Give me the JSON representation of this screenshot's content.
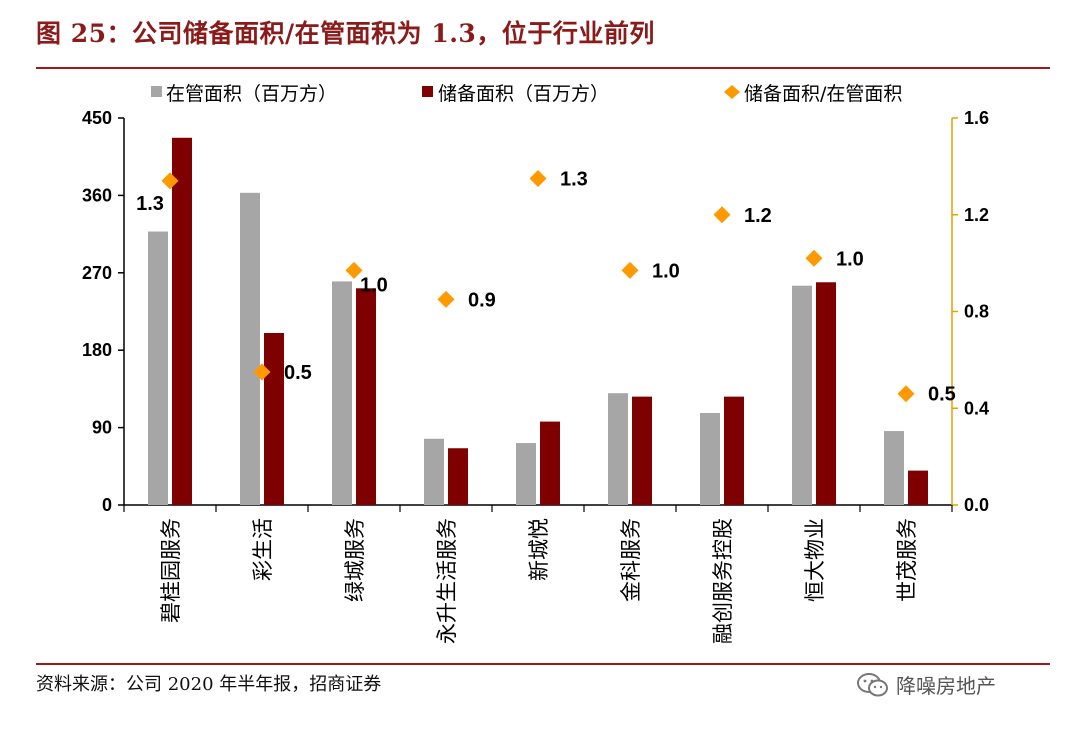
{
  "header": {
    "title": "图 25：公司储备面积/在管面积为 1.3，位于行业前列"
  },
  "footer": {
    "source": "资料来源：公司 2020 年半年报，招商证券",
    "watermark": "降噪房地产"
  },
  "colors": {
    "managed": "#a6a6a6",
    "reserve": "#7f0000",
    "ratio": "#ff9900",
    "brand": "#8b1a1a",
    "right_axis": "#e8a000"
  },
  "chart_data": {
    "type": "bar",
    "categories": [
      "碧桂园服务",
      "彩生活",
      "绿城服务",
      "永升生活服务",
      "新城悦",
      "金科服务",
      "融创服务控股",
      "恒大物业",
      "世茂服务"
    ],
    "series": [
      {
        "name": "在管面积（百万方）",
        "type": "bar",
        "axis": "left",
        "values": [
          318,
          363,
          260,
          77,
          72,
          130,
          107,
          255,
          86
        ]
      },
      {
        "name": "储备面积（百万方）",
        "type": "bar",
        "axis": "left",
        "values": [
          427,
          200,
          252,
          66,
          97,
          126,
          126,
          259,
          40
        ]
      },
      {
        "name": "储备面积/在管面积",
        "type": "scatter",
        "axis": "right",
        "values": [
          1.34,
          0.55,
          0.97,
          0.85,
          1.35,
          0.97,
          1.2,
          1.02,
          0.46
        ],
        "labels": [
          "1.3",
          "0.5",
          "1.0",
          "0.9",
          "1.3",
          "1.0",
          "1.2",
          "1.0",
          "0.5"
        ]
      }
    ],
    "y_left": {
      "ylim": [
        0,
        450
      ],
      "ticks": [
        "0",
        "90",
        "180",
        "270",
        "360",
        "450"
      ]
    },
    "y_right": {
      "ylim": [
        0,
        1.6
      ],
      "ticks": [
        "0.0",
        "0.4",
        "0.8",
        "1.2",
        "1.6"
      ]
    },
    "legend_position": "top",
    "grid": false
  }
}
